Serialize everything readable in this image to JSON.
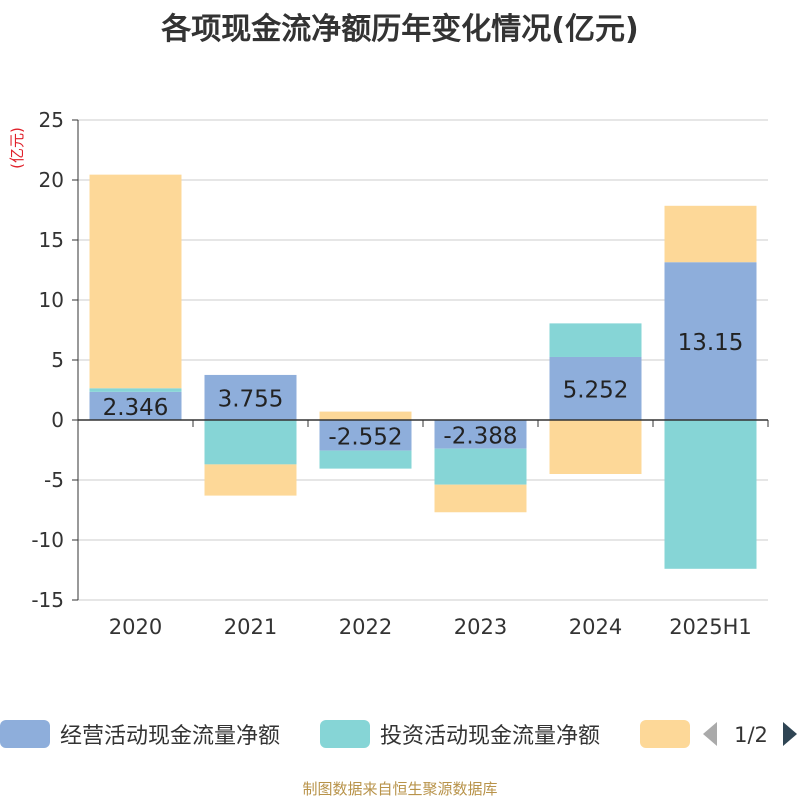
{
  "title": "各项现金流净额历年变化情况(亿元)",
  "footer": "制图数据来自恒生聚源数据库",
  "colors": {
    "operating": "#8eaedb",
    "investing": "#86d5d6",
    "financing": "#fdd898",
    "axis": "#333333",
    "grid": "#cccccc",
    "unit": "#e0202a",
    "page_arrow_disabled": "#aaaaaa",
    "page_arrow_active": "#2f4554"
  },
  "chart_data": {
    "type": "bar",
    "stacked": true,
    "title": "各项现金流净额历年变化情况(亿元)",
    "ylabel": "(亿元)",
    "ylim": [
      -15,
      25
    ],
    "yticks": [
      25,
      20,
      15,
      10,
      5,
      0,
      -5,
      -10,
      -15
    ],
    "ytick_labels": [
      "25",
      "20",
      "15",
      "10",
      "5",
      "0",
      "-5",
      "-10",
      "-15"
    ],
    "grid": true,
    "categories": [
      "2020",
      "2021",
      "2022",
      "2023",
      "2024",
      "2025H1"
    ],
    "series": [
      {
        "name": "经营活动现金流量净额",
        "color_key": "operating",
        "values": [
          2.346,
          3.755,
          -2.552,
          -2.388,
          5.252,
          13.15
        ]
      },
      {
        "name": "投资活动现金流量净额",
        "color_key": "investing",
        "values": [
          0.3,
          -3.7,
          -1.5,
          -3.0,
          2.8,
          -12.4
        ]
      },
      {
        "name": "",
        "color_key": "financing",
        "values": [
          17.8,
          -2.6,
          0.7,
          -2.3,
          -4.5,
          4.7
        ]
      }
    ],
    "data_labels": [
      "2.346",
      "3.755",
      "-2.552",
      "-2.388",
      "5.252",
      "13.15"
    ],
    "legend": {
      "position": "bottom",
      "items": [
        "经营活动现金流量净额",
        "投资活动现金流量净额",
        ""
      ],
      "page_indicator": "1/2"
    }
  }
}
